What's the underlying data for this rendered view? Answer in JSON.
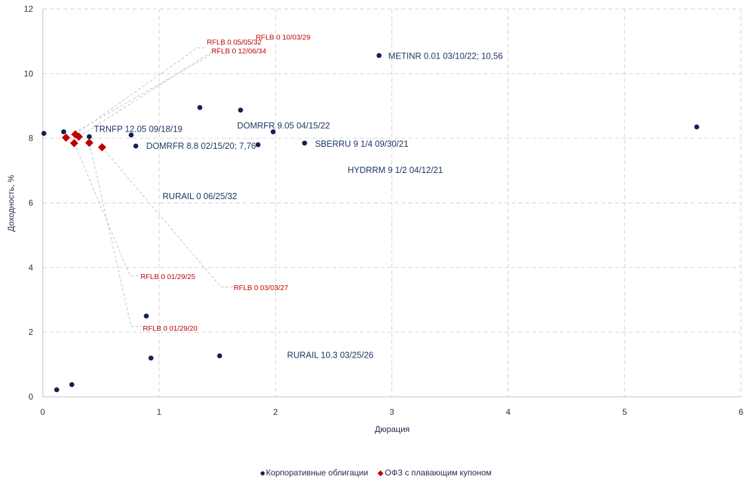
{
  "chart_data": {
    "type": "scatter",
    "xlabel": "Дюрация",
    "ylabel": "Доходность, %",
    "xlim": [
      0,
      6
    ],
    "ylim": [
      0,
      12
    ],
    "x_ticks": [
      "0",
      "1",
      "2",
      "3",
      "4",
      "5",
      "6"
    ],
    "y_ticks": [
      "0",
      "2",
      "4",
      "6",
      "8",
      "10",
      "12"
    ],
    "grid": true,
    "legend_position": "bottom",
    "series": [
      {
        "name": "Корпоративные облигации",
        "color": "#0f2350",
        "marker": "circle",
        "points": [
          {
            "x": 0.01,
            "y": 8.15
          },
          {
            "x": 0.12,
            "y": 0.22
          },
          {
            "x": 0.18,
            "y": 8.2
          },
          {
            "x": 0.25,
            "y": 0.38
          },
          {
            "x": 0.4,
            "y": 8.05
          },
          {
            "x": 0.76,
            "y": 8.1
          },
          {
            "x": 0.8,
            "y": 7.76
          },
          {
            "x": 0.89,
            "y": 2.5
          },
          {
            "x": 0.93,
            "y": 1.2
          },
          {
            "x": 1.35,
            "y": 8.95
          },
          {
            "x": 1.52,
            "y": 1.27
          },
          {
            "x": 1.7,
            "y": 8.87
          },
          {
            "x": 1.85,
            "y": 7.8
          },
          {
            "x": 1.98,
            "y": 8.2
          },
          {
            "x": 2.25,
            "y": 7.85
          },
          {
            "x": 2.89,
            "y": 10.56
          },
          {
            "x": 5.62,
            "y": 8.35
          }
        ]
      },
      {
        "name": "ОФЗ с плавающим купоном",
        "color": "#c00000",
        "marker": "diamond",
        "points": [
          {
            "x": 0.2,
            "y": 8.02
          },
          {
            "x": 0.27,
            "y": 7.85
          },
          {
            "x": 0.28,
            "y": 8.12
          },
          {
            "x": 0.31,
            "y": 8.05
          },
          {
            "x": 0.4,
            "y": 7.86
          },
          {
            "x": 0.51,
            "y": 7.72
          }
        ]
      }
    ],
    "annotations_corporate": [
      {
        "text": "METINR 0.01 03/10/22; 10,56",
        "x": 2.97,
        "y": 10.45
      },
      {
        "text": "DOMRFR 9.05 04/15/22",
        "x": 1.67,
        "y": 8.3
      },
      {
        "text": "TRNFP 12.05 09/18/19",
        "x": 0.44,
        "y": 8.2
      },
      {
        "text": "DOMRFR 8.8 02/15/20; 7,76",
        "x": 0.89,
        "y": 7.67
      },
      {
        "text": "SBERRU 9 1/4 09/30/21",
        "x": 2.34,
        "y": 7.74
      },
      {
        "text": "HYDRRM 9 1/2 04/12/21",
        "x": 2.62,
        "y": 6.93
      },
      {
        "text": "RURAIL 0 06/25/32",
        "x": 1.03,
        "y": 6.12
      },
      {
        "text": "RURAIL 10.3 03/25/26",
        "x": 2.1,
        "y": 1.2
      }
    ],
    "annotations_ofz": [
      {
        "text": "RFLB 0 10/03/29",
        "x": 1.83,
        "y": 11.05,
        "anchor_x": 0.31,
        "anchor_y": 8.05,
        "elbow_x": 1.55,
        "elbow_y": 10.9
      },
      {
        "text": "RFLB 0 05/05/32",
        "x": 1.41,
        "y": 10.9,
        "anchor_x": 0.28,
        "anchor_y": 8.12,
        "elbow_x": 1.33,
        "elbow_y": 10.8
      },
      {
        "text": "RFLB 0 12/06/34",
        "x": 1.45,
        "y": 10.63,
        "anchor_x": 0.2,
        "anchor_y": 8.02,
        "elbow_x": 1.45,
        "elbow_y": 10.6
      },
      {
        "text": "RFLB 0 01/29/25",
        "x": 0.84,
        "y": 3.65,
        "anchor_x": 0.27,
        "anchor_y": 7.85,
        "elbow_x": 0.75,
        "elbow_y": 3.75
      },
      {
        "text": "RFLB 0 03/03/27",
        "x": 1.64,
        "y": 3.3,
        "anchor_x": 0.51,
        "anchor_y": 7.72,
        "elbow_x": 1.53,
        "elbow_y": 3.4
      },
      {
        "text": "RFLB 0 01/29/20",
        "x": 0.86,
        "y": 2.05,
        "anchor_x": 0.4,
        "anchor_y": 7.86,
        "elbow_x": 0.76,
        "elbow_y": 2.18
      }
    ]
  }
}
